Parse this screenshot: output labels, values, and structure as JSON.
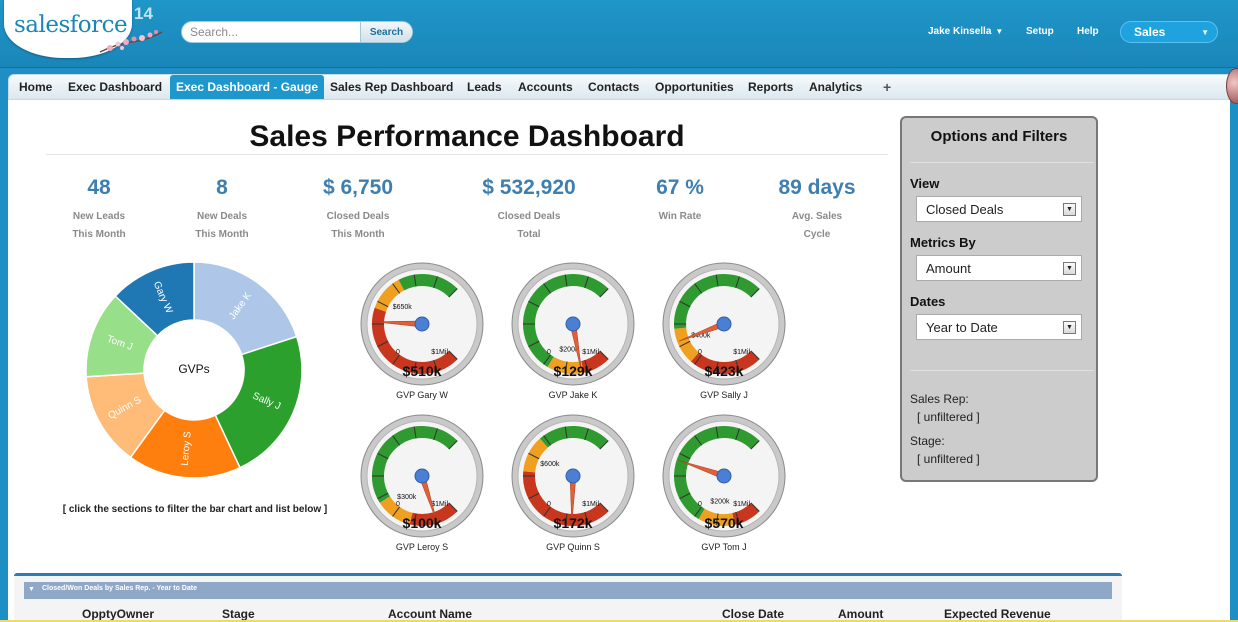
{
  "header": {
    "logo": "salesforce",
    "release": "14",
    "search_placeholder": "Search...",
    "search_button": "Search",
    "user": "Jake Kinsella",
    "setup": "Setup",
    "help": "Help",
    "app": "Sales"
  },
  "tabs": [
    {
      "label": "Home",
      "active": false
    },
    {
      "label": "Exec Dashboard",
      "active": false
    },
    {
      "label": "Exec Dashboard - Gauge",
      "active": true
    },
    {
      "label": "Sales Rep Dashboard",
      "active": false
    },
    {
      "label": "Leads",
      "active": false
    },
    {
      "label": "Accounts",
      "active": false
    },
    {
      "label": "Contacts",
      "active": false
    },
    {
      "label": "Opportunities",
      "active": false
    },
    {
      "label": "Reports",
      "active": false
    },
    {
      "label": "Analytics",
      "active": false
    }
  ],
  "tab_plus": "+",
  "dashboard": {
    "title": "Sales Performance Dashboard",
    "metrics": [
      {
        "value": "48",
        "label1": "New Leads",
        "label2": "This Month"
      },
      {
        "value": "8",
        "label1": "New Deals",
        "label2": "This Month"
      },
      {
        "value": "$ 6,750",
        "label1": "Closed Deals",
        "label2": "This Month"
      },
      {
        "value": "$ 532,920",
        "label1": "Closed Deals",
        "label2": "Total"
      },
      {
        "value": "67 %",
        "label1": "Win Rate",
        "label2": ""
      },
      {
        "value": "89 days",
        "label1": "Avg. Sales",
        "label2": "Cycle"
      }
    ],
    "donut_hint": "[ click the sections to filter the bar chart and list below ]"
  },
  "chart_data": [
    {
      "type": "pie",
      "title": "GVPs",
      "categories": [
        "Jake K",
        "Sally J",
        "Leroy S",
        "Quinn S",
        "Tom J",
        "Gary W"
      ],
      "values": [
        20,
        23,
        17,
        14,
        13,
        13
      ],
      "colors": [
        "#aec7e8",
        "#2ca02c",
        "#ff7f0e",
        "#ffbb78",
        "#98df8a",
        "#1f77b4"
      ]
    },
    {
      "type": "gauge",
      "min_label": "0",
      "max_label": "$1Mil",
      "max": 1000,
      "unit": "k",
      "gauges": [
        {
          "name": "GVP Gary W",
          "value": 510,
          "display": "$510k",
          "target": 650,
          "target_label": "$650k"
        },
        {
          "name": "GVP Jake K",
          "value": 129,
          "display": "$129k",
          "target": 200,
          "target_label": "$200k"
        },
        {
          "name": "GVP Sally J",
          "value": 423,
          "display": "$423k",
          "target": 400,
          "target_label": "$400k"
        },
        {
          "name": "GVP Leroy S",
          "value": 100,
          "display": "$100k",
          "target": 300,
          "target_label": "$300k"
        },
        {
          "name": "GVP Quinn S",
          "value": 172,
          "display": "$172k",
          "target": 600,
          "target_label": "$600k"
        },
        {
          "name": "GVP Tom J",
          "value": 570,
          "display": "$570k",
          "target": 200,
          "target_label": "$200k"
        }
      ]
    }
  ],
  "options": {
    "title": "Options and Filters",
    "view_label": "View",
    "view_value": "Closed Deals",
    "metrics_label": "Metrics By",
    "metrics_value": "Amount",
    "dates_label": "Dates",
    "dates_value": "Year to Date",
    "rep_label": "Sales Rep:",
    "rep_value": "[ unfiltered ]",
    "stage_label": "Stage:",
    "stage_value": "[ unfiltered ]"
  },
  "table": {
    "title": "Closed/Won Deals by Sales Rep. - Year to Date",
    "columns": [
      "OpptyOwner",
      "Stage",
      "Account Name",
      "Close Date",
      "Amount",
      "Expected Revenue"
    ]
  },
  "colors": {
    "header": "#1a86b8",
    "active_tab": "#1d97cc",
    "metric_value": "#3e7fb0",
    "gauge_green": "#2f9a2f",
    "gauge_red": "#c8361d",
    "gauge_orange": "#f0a020",
    "needle": "#e0603a",
    "hub": "#4a7fd4"
  }
}
